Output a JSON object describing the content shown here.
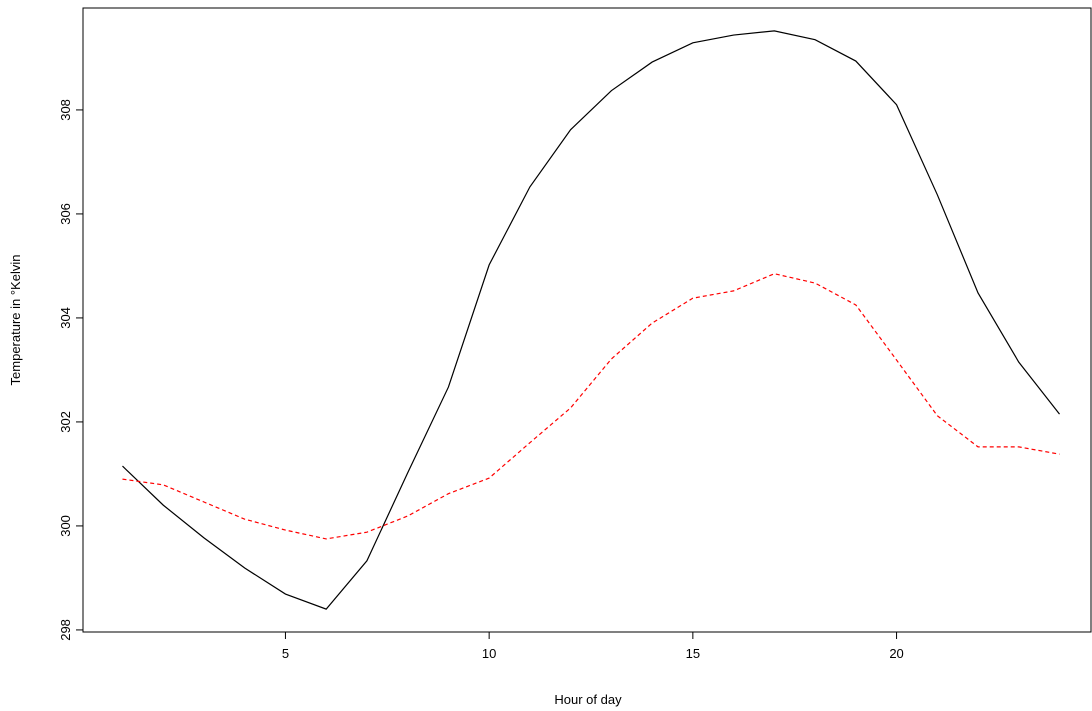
{
  "chart_data": {
    "type": "line",
    "xlabel": "Hour of day",
    "ylabel": "Temperature in °Kelvin",
    "x": [
      1,
      2,
      3,
      4,
      5,
      6,
      7,
      8,
      9,
      10,
      11,
      12,
      13,
      14,
      15,
      16,
      17,
      18,
      19,
      20,
      21,
      22,
      23,
      24
    ],
    "series": [
      {
        "color": "#000000",
        "linestyle": "solid",
        "values": [
          301.15,
          300.4,
          299.77,
          299.19,
          298.69,
          298.4,
          299.33,
          301.02,
          302.67,
          305.02,
          306.52,
          307.62,
          308.37,
          308.92,
          309.29,
          309.44,
          309.52,
          309.35,
          308.94,
          308.1,
          306.37,
          304.48,
          303.15,
          302.15
        ]
      },
      {
        "color": "#ff0000",
        "linestyle": "dashed",
        "values": [
          300.9,
          300.79,
          300.46,
          300.13,
          299.92,
          299.75,
          299.88,
          300.19,
          300.62,
          300.92,
          301.6,
          302.27,
          303.21,
          303.9,
          304.38,
          304.52,
          304.85,
          304.67,
          304.25,
          303.19,
          302.12,
          301.52,
          301.52,
          301.38
        ]
      }
    ],
    "xlim": [
      0.08,
      24.92
    ],
    "xticks": [
      5,
      10,
      15,
      20
    ],
    "ylim": [
      297.96,
      309.96
    ],
    "yticks": [
      298,
      300,
      302,
      304,
      306,
      308
    ],
    "grid": false
  }
}
